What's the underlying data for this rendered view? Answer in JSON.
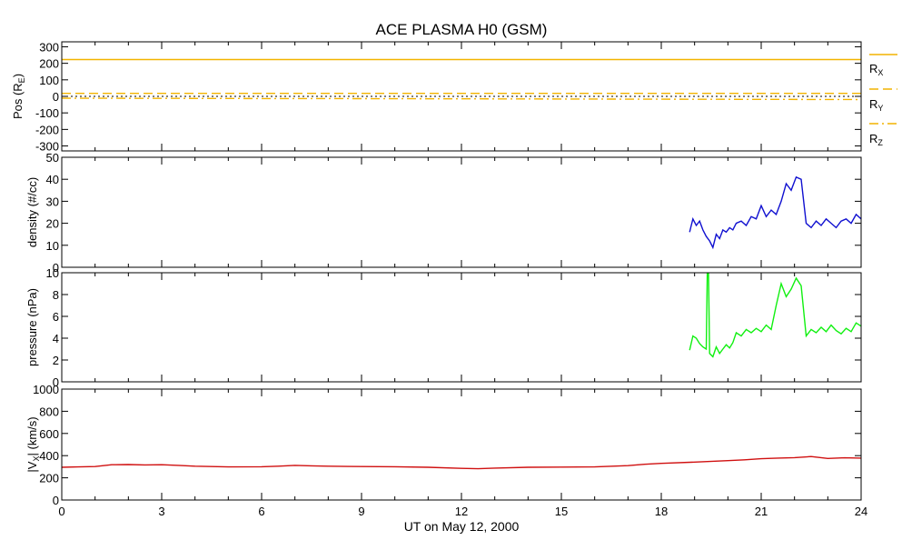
{
  "title": "ACE PLASMA H0 (GSM)",
  "xlabel": "UT on May 12, 2000",
  "colors": {
    "axis": "#000000",
    "position": "#f2b400",
    "density": "#1010d0",
    "pressure": "#10f010",
    "velocity": "#d01010"
  },
  "chart_data": [
    {
      "type": "line",
      "id": "position",
      "ylabel_main": "Pos (R",
      "ylabel_sub": "E",
      "ylabel_close": ")",
      "ylim": [
        -330,
        330
      ],
      "yticks": [
        -300,
        -200,
        -100,
        0,
        100,
        200,
        300
      ],
      "xlim": [
        0,
        24
      ],
      "legend_placement": "right",
      "series": [
        {
          "name": "R",
          "sub": "X",
          "style": "solid",
          "x": [
            0,
            24
          ],
          "y": [
            223,
            223
          ]
        },
        {
          "name": "R",
          "sub": "Y",
          "style": "dash",
          "x": [
            0,
            24
          ],
          "y": [
            18,
            18
          ]
        },
        {
          "name": "R",
          "sub": "Z",
          "style": "dashdot",
          "x": [
            0,
            3,
            6,
            9,
            12,
            15,
            18,
            21,
            24
          ],
          "y": [
            -11,
            -12,
            -13,
            -14,
            -15,
            -16,
            -17,
            -18,
            -19
          ]
        }
      ],
      "reference_line": {
        "y": 0,
        "style": "dotted"
      }
    },
    {
      "type": "line",
      "id": "density",
      "ylabel": "density (#/cc)",
      "ylim": [
        0,
        50
      ],
      "yticks": [
        0,
        10,
        20,
        30,
        40,
        50
      ],
      "xlim": [
        0,
        24
      ],
      "series": [
        {
          "name": "density",
          "x": [
            18.85,
            18.95,
            19.05,
            19.15,
            19.25,
            19.35,
            19.45,
            19.55,
            19.65,
            19.75,
            19.85,
            19.95,
            20.05,
            20.15,
            20.25,
            20.4,
            20.55,
            20.7,
            20.85,
            21.0,
            21.15,
            21.3,
            21.45,
            21.6,
            21.75,
            21.9,
            22.05,
            22.2,
            22.35,
            22.5,
            22.65,
            22.8,
            22.95,
            23.1,
            23.25,
            23.4,
            23.55,
            23.7,
            23.85,
            24.0
          ],
          "y": [
            16,
            22,
            19,
            21,
            17,
            14,
            12,
            9,
            15,
            13,
            17,
            16,
            18,
            17,
            20,
            21,
            19,
            23,
            22,
            28,
            23,
            26,
            24,
            30,
            38,
            35,
            41,
            40,
            20,
            18,
            21,
            19,
            22,
            20,
            18,
            21,
            22,
            20,
            24,
            22
          ]
        }
      ]
    },
    {
      "type": "line",
      "id": "pressure",
      "ylabel": "pressure (nPa)",
      "ylim": [
        0,
        10
      ],
      "yticks": [
        0,
        2,
        4,
        6,
        8,
        10
      ],
      "xlim": [
        0,
        24
      ],
      "series": [
        {
          "name": "pressure",
          "x": [
            18.85,
            18.95,
            19.05,
            19.15,
            19.25,
            19.35,
            19.4,
            19.45,
            19.55,
            19.65,
            19.75,
            19.85,
            19.95,
            20.05,
            20.15,
            20.25,
            20.4,
            20.55,
            20.7,
            20.85,
            21.0,
            21.15,
            21.3,
            21.45,
            21.6,
            21.75,
            21.9,
            22.05,
            22.2,
            22.35,
            22.5,
            22.65,
            22.8,
            22.95,
            23.1,
            23.25,
            23.4,
            23.55,
            23.7,
            23.85,
            24.0
          ],
          "y": [
            2.9,
            4.2,
            4.0,
            3.5,
            3.2,
            3.0,
            14.0,
            2.6,
            2.3,
            3.2,
            2.6,
            3.0,
            3.4,
            3.1,
            3.6,
            4.5,
            4.2,
            4.8,
            4.5,
            4.9,
            4.6,
            5.2,
            4.8,
            7.0,
            9.0,
            7.8,
            8.5,
            9.5,
            8.8,
            4.2,
            4.8,
            4.5,
            5.0,
            4.6,
            5.2,
            4.7,
            4.4,
            4.9,
            4.6,
            5.4,
            5.1
          ]
        }
      ]
    },
    {
      "type": "line",
      "id": "velocity",
      "ylabel_main": "|V",
      "ylabel_sub": "X",
      "ylabel_close": "| (km/s)",
      "ylim": [
        0,
        1000
      ],
      "yticks": [
        0,
        200,
        400,
        600,
        800,
        1000
      ],
      "xlim": [
        0,
        24
      ],
      "xticks": [
        0,
        3,
        6,
        9,
        12,
        15,
        18,
        21,
        24
      ],
      "series": [
        {
          "name": "velocity",
          "x": [
            0,
            0.5,
            1,
            1.5,
            2,
            2.5,
            3,
            3.5,
            4,
            5,
            6,
            6.5,
            7,
            7.5,
            8,
            9,
            10,
            11,
            12,
            12.5,
            13,
            14,
            15,
            16,
            17,
            17.5,
            18,
            19,
            20,
            20.5,
            21,
            21.5,
            22,
            22.5,
            23,
            23.5,
            24
          ],
          "y": [
            295,
            298,
            302,
            318,
            320,
            316,
            318,
            312,
            305,
            298,
            300,
            305,
            312,
            308,
            305,
            302,
            300,
            295,
            285,
            282,
            288,
            295,
            297,
            298,
            310,
            322,
            330,
            342,
            355,
            362,
            372,
            378,
            382,
            392,
            375,
            380,
            378
          ]
        }
      ]
    }
  ]
}
